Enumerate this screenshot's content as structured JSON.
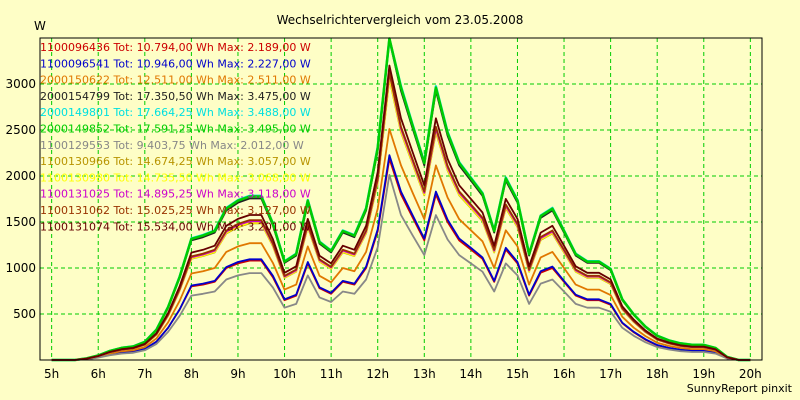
{
  "chart_data": {
    "type": "line",
    "title": "Wechselrichtervergleich vom 23.05.2008",
    "ylabel": "W",
    "footer": "SunnyReport pinxit",
    "xlim": [
      4.75,
      20.25
    ],
    "ylim": [
      0,
      3500
    ],
    "x_ticks": [
      "5h",
      "6h",
      "7h",
      "8h",
      "9h",
      "10h",
      "11h",
      "12h",
      "13h",
      "14h",
      "15h",
      "16h",
      "17h",
      "18h",
      "19h",
      "20h"
    ],
    "y_ticks": [
      500,
      1000,
      1500,
      2000,
      2500,
      3000
    ],
    "grid": true,
    "legend_position": "top-left",
    "x": [
      5.0,
      5.25,
      5.5,
      5.75,
      6.0,
      6.25,
      6.5,
      6.75,
      7.0,
      7.25,
      7.5,
      7.75,
      8.0,
      8.25,
      8.5,
      8.75,
      9.0,
      9.25,
      9.5,
      9.75,
      10.0,
      10.25,
      10.5,
      10.75,
      11.0,
      11.25,
      11.5,
      11.75,
      12.0,
      12.25,
      12.5,
      12.75,
      13.0,
      13.25,
      13.5,
      13.75,
      14.0,
      14.25,
      14.5,
      14.75,
      15.0,
      15.25,
      15.5,
      15.75,
      16.0,
      16.25,
      16.5,
      16.75,
      17.0,
      17.25,
      17.5,
      17.75,
      18.0,
      18.25,
      18.5,
      18.75,
      19.0,
      19.25,
      19.5,
      19.75,
      20.0
    ],
    "series": [
      {
        "name": "1100096436",
        "tot": "Tot: 10.794,00 Wh",
        "max": "Max: 2.189,00 W",
        "color": "#cc0000",
        "values": [
          0,
          0,
          0,
          10,
          30,
          60,
          80,
          90,
          120,
          200,
          350,
          550,
          800,
          820,
          850,
          1000,
          1050,
          1080,
          1080,
          900,
          650,
          700,
          1050,
          780,
          720,
          850,
          820,
          1000,
          1400,
          2189,
          1800,
          1550,
          1300,
          1800,
          1500,
          1300,
          1200,
          1100,
          850,
          1200,
          1050,
          700,
          950,
          1000,
          850,
          700,
          650,
          650,
          600,
          400,
          300,
          220,
          160,
          130,
          110,
          100,
          100,
          80,
          20,
          0,
          0
        ]
      },
      {
        "name": "1100096541",
        "tot": "Tot: 10.946,00 Wh",
        "max": "Max: 2.227,00 W",
        "color": "#0000cc",
        "values": [
          0,
          0,
          0,
          10,
          30,
          60,
          80,
          90,
          120,
          200,
          350,
          550,
          810,
          830,
          860,
          1010,
          1065,
          1095,
          1095,
          915,
          660,
          710,
          1065,
          790,
          730,
          860,
          830,
          1015,
          1420,
          2227,
          1830,
          1575,
          1320,
          1830,
          1525,
          1320,
          1220,
          1115,
          860,
          1220,
          1065,
          710,
          965,
          1015,
          860,
          710,
          660,
          660,
          610,
          405,
          305,
          225,
          163,
          132,
          112,
          102,
          102,
          82,
          20,
          0,
          0
        ]
      },
      {
        "name": "2000150622",
        "tot": "Tot: 12.511,00 Wh",
        "max": "Max: 2.511,00 W",
        "color": "#e07800",
        "values": [
          0,
          0,
          0,
          12,
          35,
          70,
          95,
          105,
          140,
          235,
          410,
          645,
          940,
          965,
          1000,
          1175,
          1235,
          1270,
          1270,
          1055,
          765,
          820,
          1235,
          915,
          845,
          1000,
          965,
          1175,
          1645,
          2511,
          2115,
          1820,
          1530,
          2115,
          1765,
          1530,
          1410,
          1290,
          1000,
          1410,
          1235,
          820,
          1115,
          1175,
          1000,
          820,
          765,
          765,
          705,
          470,
          350,
          260,
          188,
          153,
          130,
          118,
          118,
          95,
          24,
          0,
          0
        ]
      },
      {
        "name": "2000154799",
        "tot": "Tot: 17.350,50 Wh",
        "max": "Max: 3.475,00 W",
        "color": "#222222",
        "values": [
          0,
          0,
          0,
          16,
          48,
          97,
          130,
          145,
          195,
          325,
          567,
          893,
          1300,
          1335,
          1385,
          1625,
          1710,
          1755,
          1755,
          1462,
          1055,
          1135,
          1710,
          1265,
          1170,
          1385,
          1335,
          1625,
          2275,
          3475,
          2925,
          2517,
          2115,
          2925,
          2437,
          2115,
          1950,
          1785,
          1385,
          1950,
          1710,
          1135,
          1545,
          1625,
          1385,
          1135,
          1055,
          1055,
          975,
          650,
          487,
          357,
          260,
          211,
          178,
          162,
          162,
          130,
          32,
          0,
          0
        ]
      },
      {
        "name": "2000149801",
        "tot": "Tot: 17.664,25 Wh",
        "max": "Max: 3.488,00 W",
        "color": "#00e0e0",
        "values": [
          0,
          0,
          0,
          17,
          50,
          99,
          132,
          148,
          198,
          330,
          577,
          908,
          1321,
          1358,
          1408,
          1652,
          1738,
          1784,
          1784,
          1486,
          1073,
          1155,
          1738,
          1287,
          1189,
          1408,
          1358,
          1652,
          2313,
          3488,
          2974,
          2559,
          2150,
          2974,
          2478,
          2150,
          1983,
          1815,
          1408,
          1983,
          1738,
          1155,
          1570,
          1652,
          1408,
          1155,
          1073,
          1073,
          991,
          661,
          495,
          363,
          264,
          214,
          181,
          165,
          165,
          132,
          33,
          0,
          0
        ]
      },
      {
        "name": "2000149852",
        "tot": "Tot: 17.591,25 Wh",
        "max": "Max: 3.495,00 W",
        "color": "#00cc00",
        "values": [
          0,
          0,
          0,
          17,
          49,
          99,
          132,
          147,
          197,
          329,
          575,
          904,
          1316,
          1352,
          1402,
          1645,
          1731,
          1777,
          1777,
          1480,
          1068,
          1150,
          1731,
          1281,
          1184,
          1402,
          1352,
          1645,
          2303,
          3495,
          2961,
          2548,
          2141,
          2961,
          2467,
          2141,
          1974,
          1807,
          1402,
          1974,
          1731,
          1150,
          1564,
          1645,
          1402,
          1150,
          1068,
          1068,
          987,
          658,
          493,
          362,
          263,
          213,
          180,
          164,
          164,
          132,
          33,
          0,
          0
        ]
      },
      {
        "name": "1100129553",
        "tot": "Tot: 9.403,75 Wh",
        "max": "Max: 2.012,00 W",
        "color": "#888888",
        "values": [
          0,
          0,
          0,
          9,
          26,
          52,
          70,
          78,
          105,
          175,
          305,
          480,
          700,
          720,
          745,
          875,
          920,
          945,
          945,
          788,
          568,
          610,
          920,
          680,
          630,
          745,
          720,
          875,
          1225,
          2012,
          1575,
          1355,
          1140,
          1575,
          1310,
          1140,
          1050,
          960,
          745,
          1050,
          920,
          610,
          830,
          875,
          745,
          610,
          568,
          568,
          525,
          350,
          262,
          192,
          140,
          114,
          96,
          87,
          87,
          70,
          17,
          0,
          0
        ]
      },
      {
        "name": "1100130966",
        "tot": "Tot: 14.674,25 Wh",
        "max": "Max: 3.057,00 W",
        "color": "#b89400",
        "values": [
          0,
          0,
          0,
          14,
          41,
          82,
          110,
          123,
          165,
          275,
          480,
          755,
          1100,
          1130,
          1170,
          1375,
          1445,
          1485,
          1485,
          1237,
          893,
          960,
          1445,
          1070,
          990,
          1170,
          1130,
          1375,
          1925,
          3057,
          2475,
          2130,
          1790,
          2475,
          2060,
          1790,
          1650,
          1510,
          1170,
          1650,
          1445,
          960,
          1305,
          1375,
          1170,
          960,
          893,
          893,
          825,
          550,
          412,
          302,
          220,
          179,
          151,
          137,
          137,
          110,
          27,
          0,
          0
        ]
      },
      {
        "name": "1100130980",
        "tot": "Tot: 14.735,50 Wh",
        "max": "Max: 3.068,00 W",
        "color": "#ffff00",
        "values": [
          0,
          0,
          0,
          14,
          42,
          83,
          111,
          124,
          166,
          276,
          482,
          758,
          1104,
          1134,
          1175,
          1380,
          1451,
          1491,
          1491,
          1242,
          897,
          964,
          1451,
          1074,
          994,
          1175,
          1134,
          1380,
          1933,
          3068,
          2485,
          2139,
          1797,
          2485,
          2068,
          1797,
          1657,
          1516,
          1175,
          1657,
          1451,
          964,
          1310,
          1380,
          1175,
          964,
          897,
          897,
          829,
          552,
          414,
          303,
          221,
          180,
          152,
          138,
          138,
          110,
          28,
          0,
          0
        ]
      },
      {
        "name": "1100131025",
        "tot": "Tot: 14.895,25 Wh",
        "max": "Max: 3.118,00 W",
        "color": "#cc00cc",
        "values": [
          0,
          0,
          0,
          14,
          42,
          84,
          112,
          126,
          168,
          280,
          488,
          767,
          1117,
          1147,
          1188,
          1396,
          1467,
          1508,
          1508,
          1256,
          907,
          975,
          1467,
          1086,
          1005,
          1188,
          1147,
          1396,
          1955,
          3118,
          2513,
          2163,
          1817,
          2513,
          2091,
          1817,
          1675,
          1533,
          1188,
          1675,
          1467,
          975,
          1325,
          1396,
          1188,
          975,
          907,
          907,
          838,
          558,
          418,
          307,
          223,
          182,
          153,
          139,
          139,
          112,
          28,
          0,
          0
        ]
      },
      {
        "name": "1100131062",
        "tot": "Tot: 15.025,25 Wh",
        "max": "Max: 3.127,00 W",
        "color": "#993300",
        "values": [
          0,
          0,
          0,
          14,
          42,
          85,
          113,
          127,
          169,
          282,
          492,
          774,
          1126,
          1157,
          1199,
          1408,
          1480,
          1521,
          1521,
          1267,
          915,
          984,
          1480,
          1095,
          1014,
          1199,
          1157,
          1408,
          1972,
          3127,
          2535,
          2182,
          1833,
          2535,
          2110,
          1833,
          1690,
          1547,
          1199,
          1690,
          1480,
          984,
          1337,
          1408,
          1199,
          984,
          915,
          915,
          845,
          563,
          422,
          310,
          225,
          183,
          155,
          141,
          141,
          113,
          28,
          0,
          0
        ]
      },
      {
        "name": "1100131074",
        "tot": "Tot: 15.534,00 Wh",
        "max": "Max: 3.201,00 W",
        "color": "#660000",
        "values": [
          0,
          0,
          0,
          15,
          44,
          88,
          117,
          131,
          175,
          292,
          510,
          802,
          1167,
          1198,
          1242,
          1459,
          1534,
          1576,
          1576,
          1313,
          948,
          1019,
          1534,
          1134,
          1050,
          1242,
          1198,
          1459,
          2043,
          3201,
          2627,
          2261,
          1899,
          2627,
          2186,
          1899,
          1751,
          1603,
          1242,
          1751,
          1534,
          1019,
          1385,
          1459,
          1242,
          1019,
          948,
          948,
          876,
          584,
          438,
          321,
          233,
          190,
          160,
          146,
          146,
          117,
          29,
          0,
          0
        ]
      }
    ]
  }
}
